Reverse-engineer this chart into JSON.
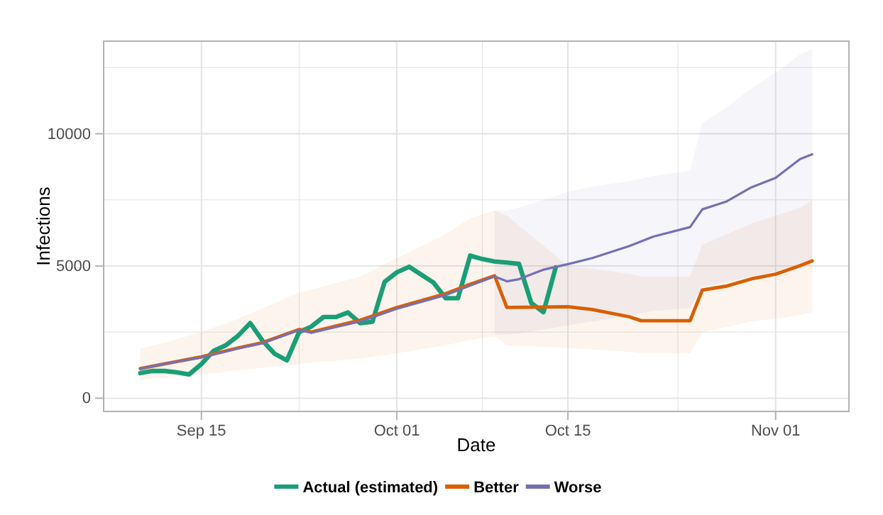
{
  "chart_data": {
    "type": "line",
    "xlabel": "Date",
    "ylabel": "Infections",
    "xlim": [
      "--09-07",
      "--11-07"
    ],
    "xticks": [
      {
        "value": "--09-15",
        "label": "Sep 15"
      },
      {
        "value": "--09-23",
        "label": null
      },
      {
        "value": "--10-01",
        "label": "Oct 01"
      },
      {
        "value": "--10-08",
        "label": null
      },
      {
        "value": "--10-15",
        "label": "Oct 15"
      },
      {
        "value": "--10-24",
        "label": null
      },
      {
        "value": "--11-01",
        "label": "Nov 01"
      }
    ],
    "ylim": [
      -500,
      13500
    ],
    "yticks": [
      0,
      {
        "value": 2500,
        "label": null
      },
      5000,
      {
        "value": 7500,
        "label": null
      },
      10000,
      {
        "value": 12500,
        "label": null
      }
    ],
    "grid": true,
    "legend": "bottom",
    "line_style": "solid",
    "series": [
      {
        "name": "Actual (estimated)",
        "color": "#1b9e77",
        "x": [
          "--09-10",
          "--09-11",
          "--09-12",
          "--09-13",
          "--09-14",
          "--09-15",
          "--09-16",
          "--09-17",
          "--09-18",
          "--09-19",
          "--09-20",
          "--09-21",
          "--09-22",
          "--09-23",
          "--09-24",
          "--09-25",
          "--09-26",
          "--09-27",
          "--09-28",
          "--09-29",
          "--09-30",
          "--10-01",
          "--10-02",
          "--10-03",
          "--10-04",
          "--10-05",
          "--10-06",
          "--10-07",
          "--10-08",
          "--10-09",
          "--10-10",
          "--10-11",
          "--10-12",
          "--10-13",
          "--10-14"
        ],
        "values": [
          950,
          1030,
          1030,
          980,
          900,
          1290,
          1790,
          2000,
          2360,
          2840,
          2180,
          1680,
          1430,
          2500,
          2710,
          3070,
          3070,
          3240,
          2840,
          2890,
          4400,
          4760,
          4970,
          4670,
          4370,
          3780,
          3780,
          5390,
          5260,
          5170,
          5130,
          5080,
          3600,
          3250,
          4950
        ]
      },
      {
        "name": "Better",
        "color": "#d95f02",
        "x": [
          "--09-10",
          "--09-12",
          "--09-15",
          "--09-18",
          "--09-20",
          "--09-23",
          "--09-24",
          "--09-28",
          "--10-01",
          "--10-05",
          "--10-07",
          "--10-09",
          "--10-10",
          "--10-15",
          "--10-17",
          "--10-20",
          "--10-21",
          "--10-25",
          "--10-26",
          "--10-28",
          "--10-30",
          "--11-01",
          "--11-03",
          "--11-04"
        ],
        "values": [
          1120,
          1300,
          1560,
          1900,
          2100,
          2600,
          2500,
          2950,
          3430,
          3950,
          4310,
          4630,
          3430,
          3460,
          3350,
          3080,
          2930,
          2930,
          4090,
          4240,
          4510,
          4690,
          5010,
          5190
        ],
        "lower": [
          700,
          780,
          900,
          1050,
          1150,
          1300,
          1350,
          1500,
          1700,
          2000,
          2200,
          2350,
          2000,
          1900,
          1850,
          1750,
          1700,
          1700,
          2500,
          2700,
          2900,
          3000,
          3150,
          3250
        ],
        "upper": [
          1880,
          2100,
          2500,
          3000,
          3400,
          4000,
          4100,
          4600,
          5300,
          6200,
          6800,
          7100,
          6900,
          5000,
          4900,
          4700,
          4600,
          4600,
          5800,
          6200,
          6600,
          6900,
          7200,
          7500
        ]
      },
      {
        "name": "Worse",
        "color": "#7570b3",
        "x": [
          "--09-10",
          "--09-12",
          "--09-15",
          "--09-18",
          "--09-20",
          "--09-23",
          "--09-24",
          "--09-28",
          "--10-01",
          "--10-05",
          "--10-07",
          "--10-09",
          "--10-10",
          "--10-11",
          "--10-13",
          "--10-15",
          "--10-17",
          "--10-20",
          "--10-22",
          "--10-25",
          "--10-26",
          "--10-28",
          "--10-30",
          "--11-01",
          "--11-03",
          "--11-04"
        ],
        "values": [
          1120,
          1300,
          1540,
          1880,
          2080,
          2580,
          2480,
          2900,
          3380,
          3900,
          4260,
          4600,
          4420,
          4500,
          4860,
          5070,
          5300,
          5750,
          6110,
          6470,
          7140,
          7440,
          7970,
          8330,
          9040,
          9220
        ],
        "lower": [
          null,
          null,
          null,
          null,
          null,
          null,
          null,
          null,
          null,
          null,
          null,
          2400,
          2400,
          2450,
          2600,
          2750,
          2900,
          3100,
          3300,
          3400,
          4200,
          4400,
          4600,
          4800,
          5100,
          5200
        ],
        "upper": [
          null,
          null,
          null,
          null,
          null,
          null,
          null,
          null,
          null,
          null,
          null,
          7100,
          7100,
          7200,
          7500,
          7800,
          8000,
          8200,
          8400,
          8600,
          10400,
          11000,
          11700,
          12300,
          13000,
          13200
        ]
      }
    ]
  }
}
